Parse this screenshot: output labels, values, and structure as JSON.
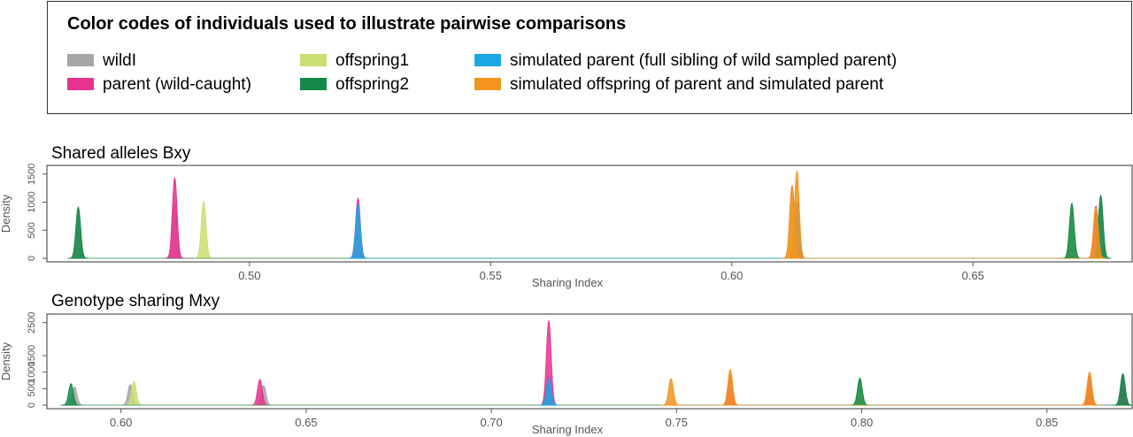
{
  "legend": {
    "title": "Color codes of individuals used to illustrate pairwise comparisons",
    "items": [
      {
        "label": "wildI",
        "color": "#a6a6a6"
      },
      {
        "label": "parent (wild-caught)",
        "color": "#e8338f"
      },
      {
        "label": "offspring1",
        "color": "#c9df72"
      },
      {
        "label": "offspring2",
        "color": "#15894a"
      },
      {
        "label": "simulated parent (full sibling of wild sampled parent)",
        "color": "#1ba7e3"
      },
      {
        "label": "simulated offspring of parent and simulated parent",
        "color": "#f2941f"
      }
    ]
  },
  "chart_data": [
    {
      "type": "area",
      "title": "Shared alleles Bxy",
      "xlabel": "Sharing Index",
      "ylabel": "Density",
      "xlim": [
        0.458,
        0.683
      ],
      "ylim": [
        0,
        1560
      ],
      "x_ticks": [
        "0.50",
        "0.55",
        "0.60",
        "0.65"
      ],
      "y_ticks": [
        "0",
        "500",
        "1000",
        "1500"
      ],
      "series": [
        {
          "color": "#a6a6a6",
          "peaks": [
            [
              0.4645,
              900
            ],
            [
              0.4845,
              1000
            ],
            [
              0.6135,
              700
            ],
            [
              0.6765,
              1000
            ]
          ]
        },
        {
          "color": "#e8338f",
          "peaks": [
            [
              0.4845,
              1430
            ],
            [
              0.5225,
              1070
            ],
            [
              0.6125,
              1290
            ],
            [
              0.6755,
              930
            ]
          ]
        },
        {
          "color": "#c9df72",
          "peaks": [
            [
              0.4905,
              1010
            ],
            [
              0.6125,
              1050
            ],
            [
              0.6705,
              900
            ]
          ]
        },
        {
          "color": "#15894a",
          "peaks": [
            [
              0.4645,
              910
            ],
            [
              0.6705,
              980
            ],
            [
              0.6765,
              1120
            ]
          ]
        },
        {
          "color": "#1ba7e3",
          "peaks": [
            [
              0.5225,
              960
            ],
            [
              0.6135,
              1000
            ]
          ]
        },
        {
          "color": "#f2941f",
          "peaks": [
            [
              0.6125,
              1280
            ],
            [
              0.6135,
              1550
            ],
            [
              0.6755,
              900
            ]
          ]
        }
      ]
    },
    {
      "type": "area",
      "title": "Genotype sharing Mxy",
      "xlabel": "Sharing Index",
      "ylabel": "Density",
      "xlim": [
        0.58,
        0.873
      ],
      "ylim": [
        0,
        2600
      ],
      "x_ticks": [
        "0.60",
        "0.65",
        "0.70",
        "0.75",
        "0.80",
        "0.85"
      ],
      "y_ticks": [
        "0",
        "500",
        "1000",
        "1500",
        "2500"
      ],
      "series": [
        {
          "color": "#a6a6a6",
          "peaks": [
            [
              0.5875,
              550
            ],
            [
              0.6025,
              620
            ],
            [
              0.6385,
              600
            ],
            [
              0.7155,
              900
            ],
            [
              0.8615,
              750
            ]
          ]
        },
        {
          "color": "#e8338f",
          "peaks": [
            [
              0.6375,
              780
            ],
            [
              0.7155,
              2550
            ],
            [
              0.7645,
              900
            ],
            [
              0.8615,
              900
            ],
            [
              0.8705,
              900
            ]
          ]
        },
        {
          "color": "#c9df72",
          "peaks": [
            [
              0.6035,
              720
            ],
            [
              0.7995,
              750
            ]
          ]
        },
        {
          "color": "#15894a",
          "peaks": [
            [
              0.5865,
              650
            ],
            [
              0.7995,
              820
            ],
            [
              0.8705,
              950
            ]
          ]
        },
        {
          "color": "#1ba7e3",
          "peaks": [
            [
              0.7155,
              800
            ]
          ]
        },
        {
          "color": "#f2941f",
          "peaks": [
            [
              0.7485,
              800
            ],
            [
              0.7645,
              1080
            ],
            [
              0.8615,
              1000
            ]
          ]
        }
      ]
    }
  ]
}
